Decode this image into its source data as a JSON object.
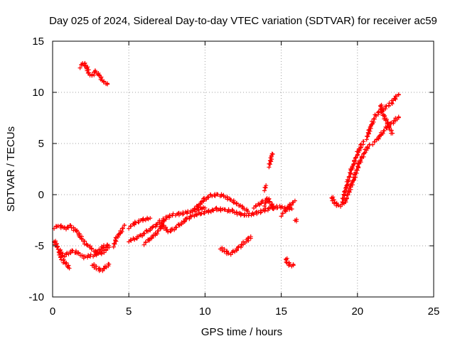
{
  "chart_data": {
    "type": "scatter",
    "title": "Day 025 of 2024, Sidereal Day-to-day VTEC variation (SDTVAR) for receiver ac59",
    "xlabel": "GPS time / hours",
    "ylabel": "SDTVAR / TECUs",
    "xlim": [
      0,
      25
    ],
    "ylim": [
      -10,
      15
    ],
    "xticks": [
      0,
      5,
      10,
      15,
      20,
      25
    ],
    "yticks": [
      -10,
      -5,
      0,
      5,
      10,
      15
    ],
    "xtick_labels": [
      "0",
      "5",
      "10",
      "15",
      "20",
      "25"
    ],
    "ytick_labels": [
      "-10",
      "-5",
      "0",
      "5",
      "10",
      "15"
    ],
    "grid": true,
    "marker": "+",
    "color": "#ff0000",
    "series": [
      {
        "name": "SDTVAR",
        "segments": [
          [
            [
              0.1,
              -3.2
            ],
            [
              0.4,
              -3.0
            ],
            [
              0.8,
              -3.3
            ],
            [
              1.2,
              -3.1
            ],
            [
              1.6,
              -3.6
            ],
            [
              1.9,
              -4.3
            ],
            [
              2.2,
              -4.8
            ],
            [
              2.5,
              -5.2
            ],
            [
              2.8,
              -5.6
            ],
            [
              3.1,
              -5.8
            ],
            [
              3.4,
              -5.5
            ],
            [
              3.7,
              -5.0
            ]
          ],
          [
            [
              0.1,
              -4.5
            ],
            [
              0.4,
              -5.3
            ],
            [
              0.7,
              -6.0
            ],
            [
              1.0,
              -5.8
            ],
            [
              1.3,
              -5.5
            ],
            [
              1.7,
              -5.7
            ],
            [
              2.0,
              -6.1
            ],
            [
              2.4,
              -6.0
            ],
            [
              2.8,
              -5.9
            ],
            [
              3.2,
              -5.2
            ],
            [
              3.6,
              -4.9
            ]
          ],
          [
            [
              0.4,
              -5.5
            ],
            [
              0.6,
              -6.3
            ],
            [
              0.9,
              -6.8
            ],
            [
              1.1,
              -7.2
            ]
          ],
          [
            [
              2.6,
              -6.8
            ],
            [
              2.9,
              -7.2
            ],
            [
              3.2,
              -7.4
            ],
            [
              3.5,
              -7.1
            ],
            [
              3.7,
              -6.8
            ]
          ],
          [
            [
              1.8,
              12.5
            ],
            [
              2.0,
              12.9
            ],
            [
              2.2,
              12.6
            ],
            [
              2.4,
              11.8
            ],
            [
              2.6,
              11.6
            ],
            [
              2.8,
              12.1
            ],
            [
              3.0,
              11.8
            ],
            [
              3.3,
              11.1
            ],
            [
              3.6,
              10.8
            ]
          ],
          [
            [
              4.0,
              -5.0
            ],
            [
              4.2,
              -4.2
            ],
            [
              4.5,
              -3.6
            ],
            [
              4.7,
              -3.0
            ]
          ],
          [
            [
              5.0,
              -4.5
            ],
            [
              5.4,
              -4.3
            ],
            [
              5.8,
              -4.0
            ],
            [
              6.2,
              -3.6
            ],
            [
              6.6,
              -3.2
            ],
            [
              7.0,
              -2.7
            ],
            [
              7.4,
              -2.3
            ],
            [
              7.8,
              -2.0
            ],
            [
              8.2,
              -1.9
            ],
            [
              8.7,
              -1.8
            ],
            [
              9.2,
              -1.6
            ],
            [
              9.6,
              -1.4
            ],
            [
              10.0,
              -1.3
            ]
          ],
          [
            [
              5.0,
              -3.2
            ],
            [
              5.5,
              -2.7
            ],
            [
              6.0,
              -2.4
            ],
            [
              6.4,
              -2.3
            ]
          ],
          [
            [
              6.0,
              -4.8
            ],
            [
              6.4,
              -4.3
            ],
            [
              6.8,
              -3.8
            ],
            [
              7.1,
              -3.2
            ],
            [
              7.3,
              -2.5
            ]
          ],
          [
            [
              7.2,
              -3.0
            ],
            [
              7.6,
              -3.6
            ],
            [
              7.9,
              -3.4
            ],
            [
              8.3,
              -3.0
            ],
            [
              8.8,
              -2.4
            ],
            [
              9.2,
              -2.0
            ]
          ],
          [
            [
              9.2,
              -1.5
            ],
            [
              9.6,
              -1.0
            ],
            [
              10.0,
              -0.4
            ],
            [
              10.4,
              -0.1
            ],
            [
              10.8,
              0.0
            ],
            [
              11.2,
              -0.1
            ],
            [
              11.6,
              -0.4
            ],
            [
              12.0,
              -0.8
            ],
            [
              12.4,
              -1.2
            ],
            [
              12.8,
              -1.6
            ]
          ],
          [
            [
              9.3,
              -2.0
            ],
            [
              9.8,
              -1.8
            ],
            [
              10.3,
              -1.6
            ],
            [
              10.8,
              -1.4
            ],
            [
              11.3,
              -1.5
            ],
            [
              11.8,
              -1.6
            ],
            [
              12.3,
              -1.9
            ],
            [
              12.8,
              -2.0
            ],
            [
              13.3,
              -1.8
            ],
            [
              13.8,
              -1.6
            ],
            [
              14.3,
              -1.3
            ],
            [
              14.8,
              -1.2
            ],
            [
              15.3,
              -1.3
            ],
            [
              15.7,
              -1.4
            ]
          ],
          [
            [
              13.2,
              -1.2
            ],
            [
              13.6,
              -0.9
            ],
            [
              13.8,
              -0.6
            ]
          ],
          [
            [
              13.9,
              -1.0
            ],
            [
              14.1,
              -0.3
            ],
            [
              14.3,
              -0.8
            ],
            [
              14.5,
              -1.4
            ]
          ],
          [
            [
              13.9,
              0.5
            ],
            [
              14.0,
              0.9
            ]
          ],
          [
            [
              14.2,
              2.8
            ],
            [
              14.3,
              3.4
            ],
            [
              14.4,
              4.0
            ]
          ],
          [
            [
              15.0,
              -2.0
            ],
            [
              15.3,
              -1.5
            ],
            [
              15.6,
              -1.0
            ],
            [
              15.9,
              -0.6
            ]
          ],
          [
            [
              15.9,
              -2.4
            ],
            [
              16.0,
              -2.6
            ]
          ],
          [
            [
              11.0,
              -5.2
            ],
            [
              11.3,
              -5.5
            ],
            [
              11.6,
              -5.8
            ],
            [
              11.9,
              -5.6
            ],
            [
              12.2,
              -5.2
            ],
            [
              12.5,
              -4.8
            ],
            [
              12.8,
              -4.4
            ],
            [
              13.0,
              -4.1
            ]
          ],
          [
            [
              15.3,
              -6.2
            ],
            [
              15.4,
              -6.6
            ],
            [
              15.6,
              -6.9
            ],
            [
              15.8,
              -6.9
            ]
          ],
          [
            [
              18.3,
              -0.2
            ],
            [
              18.5,
              -0.8
            ],
            [
              18.8,
              -1.1
            ],
            [
              19.1,
              -0.9
            ],
            [
              19.3,
              -0.4
            ]
          ],
          [
            [
              19.0,
              -0.6
            ],
            [
              19.2,
              0.4
            ],
            [
              19.4,
              1.4
            ],
            [
              19.6,
              2.4
            ],
            [
              19.8,
              3.2
            ],
            [
              20.0,
              4.0
            ],
            [
              20.2,
              4.7
            ],
            [
              20.4,
              5.2
            ]
          ],
          [
            [
              19.3,
              -0.2
            ],
            [
              19.6,
              0.9
            ],
            [
              19.9,
              2.1
            ],
            [
              20.1,
              3.0
            ],
            [
              20.3,
              3.6
            ],
            [
              20.5,
              4.2
            ],
            [
              20.8,
              4.9
            ]
          ],
          [
            [
              20.6,
              5.5
            ],
            [
              20.8,
              6.4
            ],
            [
              21.0,
              7.1
            ],
            [
              21.2,
              7.7
            ],
            [
              21.4,
              8.0
            ],
            [
              21.6,
              8.3
            ],
            [
              21.8,
              8.5
            ],
            [
              22.0,
              8.7
            ],
            [
              22.2,
              8.9
            ],
            [
              22.4,
              9.3
            ],
            [
              22.6,
              9.6
            ],
            [
              22.7,
              9.8
            ]
          ],
          [
            [
              21.0,
              5.0
            ],
            [
              21.3,
              5.4
            ],
            [
              21.6,
              6.0
            ],
            [
              21.9,
              6.5
            ],
            [
              22.2,
              6.9
            ],
            [
              22.5,
              7.3
            ],
            [
              22.7,
              7.6
            ]
          ],
          [
            [
              21.5,
              8.8
            ],
            [
              21.7,
              7.8
            ],
            [
              21.9,
              7.2
            ],
            [
              22.1,
              6.5
            ],
            [
              22.3,
              6.0
            ]
          ]
        ]
      }
    ]
  }
}
